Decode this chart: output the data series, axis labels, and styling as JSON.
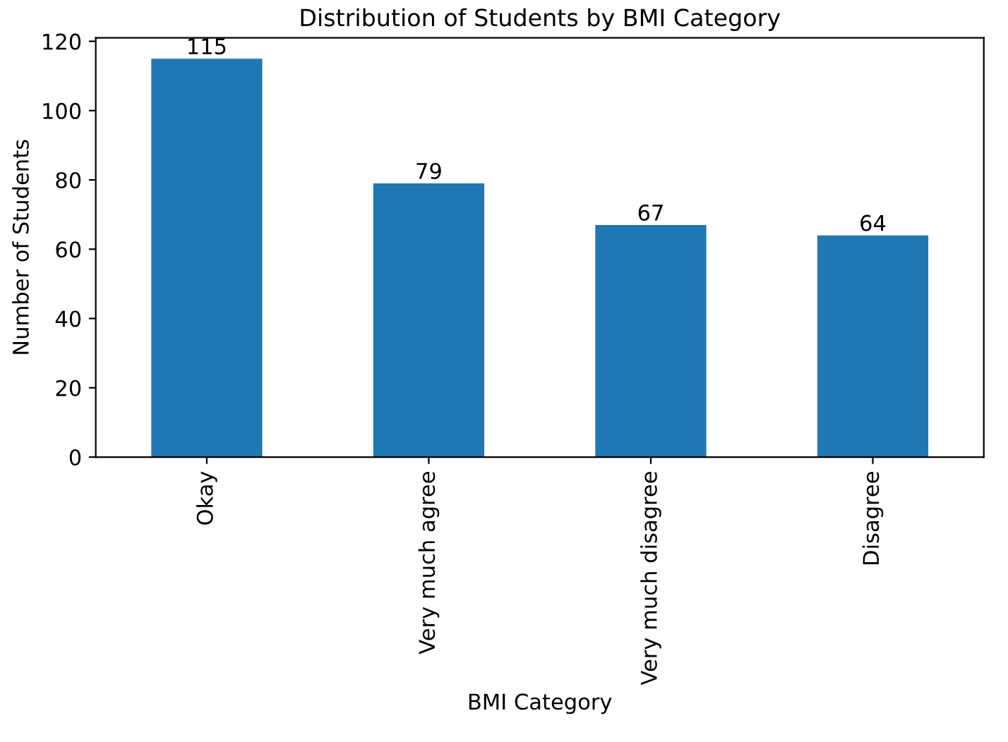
{
  "chart_data": {
    "type": "bar",
    "title": "Distribution of Students by BMI Category",
    "xlabel": "BMI Category",
    "ylabel": "Number of Students",
    "categories": [
      "Okay",
      "Very much agree",
      "Very much disagree",
      "Disagree"
    ],
    "values": [
      115,
      79,
      67,
      64
    ],
    "color": "#1f77b4",
    "ylim": [
      0,
      121
    ],
    "yticks": [
      0,
      20,
      40,
      60,
      80,
      100,
      120
    ],
    "data_labels": true,
    "grid": false,
    "legend": false
  }
}
